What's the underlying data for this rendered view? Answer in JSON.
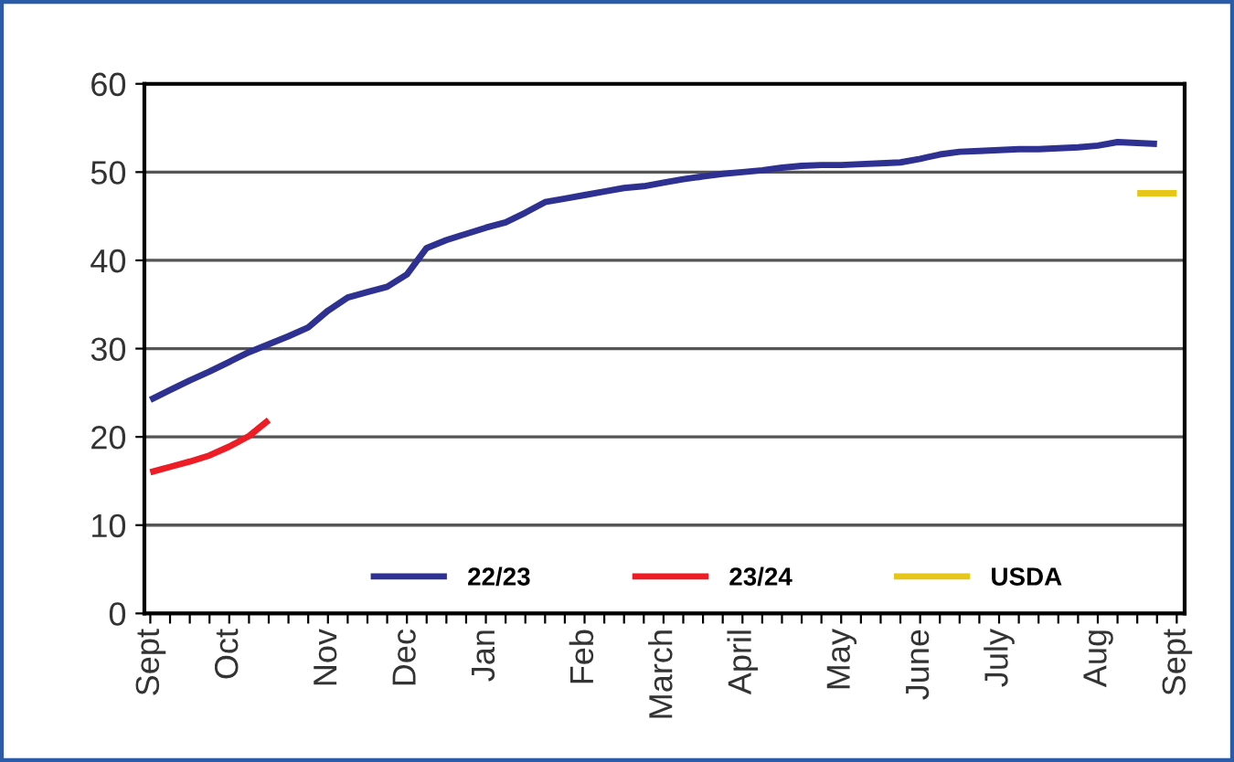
{
  "chart_data": {
    "type": "line",
    "ylim": [
      0,
      60
    ],
    "yticks": [
      0,
      10,
      20,
      30,
      40,
      50,
      60
    ],
    "categories": [
      "Sept",
      null,
      null,
      null,
      "Oct",
      null,
      null,
      null,
      null,
      "Nov",
      null,
      null,
      null,
      "Dec",
      null,
      null,
      null,
      "Jan",
      null,
      null,
      null,
      null,
      "Feb",
      null,
      null,
      null,
      "March",
      null,
      null,
      null,
      "April",
      null,
      null,
      null,
      null,
      "May",
      null,
      null,
      null,
      "June",
      null,
      null,
      null,
      "July",
      null,
      null,
      null,
      null,
      "Aug",
      null,
      null,
      null,
      "Sept"
    ],
    "grid": "y",
    "legend": "bottom",
    "marker": "none",
    "line_style": "solid",
    "series": [
      {
        "name": "22/23",
        "color": "#2e3192",
        "values": [
          24.2,
          25.3,
          26.4,
          27.4,
          28.5,
          29.6,
          30.5,
          31.4,
          32.4,
          34.3,
          35.8,
          36.4,
          37,
          38.4,
          41.4,
          42.3,
          43,
          43.7,
          44.3,
          45.4,
          46.6,
          47,
          47.4,
          47.8,
          48.2,
          48.4,
          48.8,
          49.2,
          49.5,
          49.8,
          50,
          50.2,
          50.5,
          50.7,
          50.8,
          50.8,
          50.9,
          51,
          51.1,
          51.5,
          52,
          52.3,
          52.4,
          52.5,
          52.6,
          52.6,
          52.7,
          52.8,
          53,
          53.4,
          53.3,
          53.2,
          null
        ]
      },
      {
        "name": "23/24",
        "color": "#ee1c25",
        "values": [
          16,
          16.6,
          17.2,
          17.9,
          18.9,
          20.1,
          21.9,
          null,
          null,
          null,
          null,
          null,
          null,
          null,
          null,
          null,
          null,
          null,
          null,
          null,
          null,
          null,
          null,
          null,
          null,
          null,
          null,
          null,
          null,
          null,
          null,
          null,
          null,
          null,
          null,
          null,
          null,
          null,
          null,
          null,
          null,
          null,
          null,
          null,
          null,
          null,
          null,
          null,
          null,
          null,
          null,
          null,
          null
        ]
      },
      {
        "name": "USDA",
        "color": "#e6c619",
        "values": [
          null,
          null,
          null,
          null,
          null,
          null,
          null,
          null,
          null,
          null,
          null,
          null,
          null,
          null,
          null,
          null,
          null,
          null,
          null,
          null,
          null,
          null,
          null,
          null,
          null,
          null,
          null,
          null,
          null,
          null,
          null,
          null,
          null,
          null,
          null,
          null,
          null,
          null,
          null,
          null,
          null,
          null,
          null,
          null,
          null,
          null,
          null,
          null,
          null,
          null,
          47.6,
          47.6,
          47.6
        ]
      }
    ]
  }
}
